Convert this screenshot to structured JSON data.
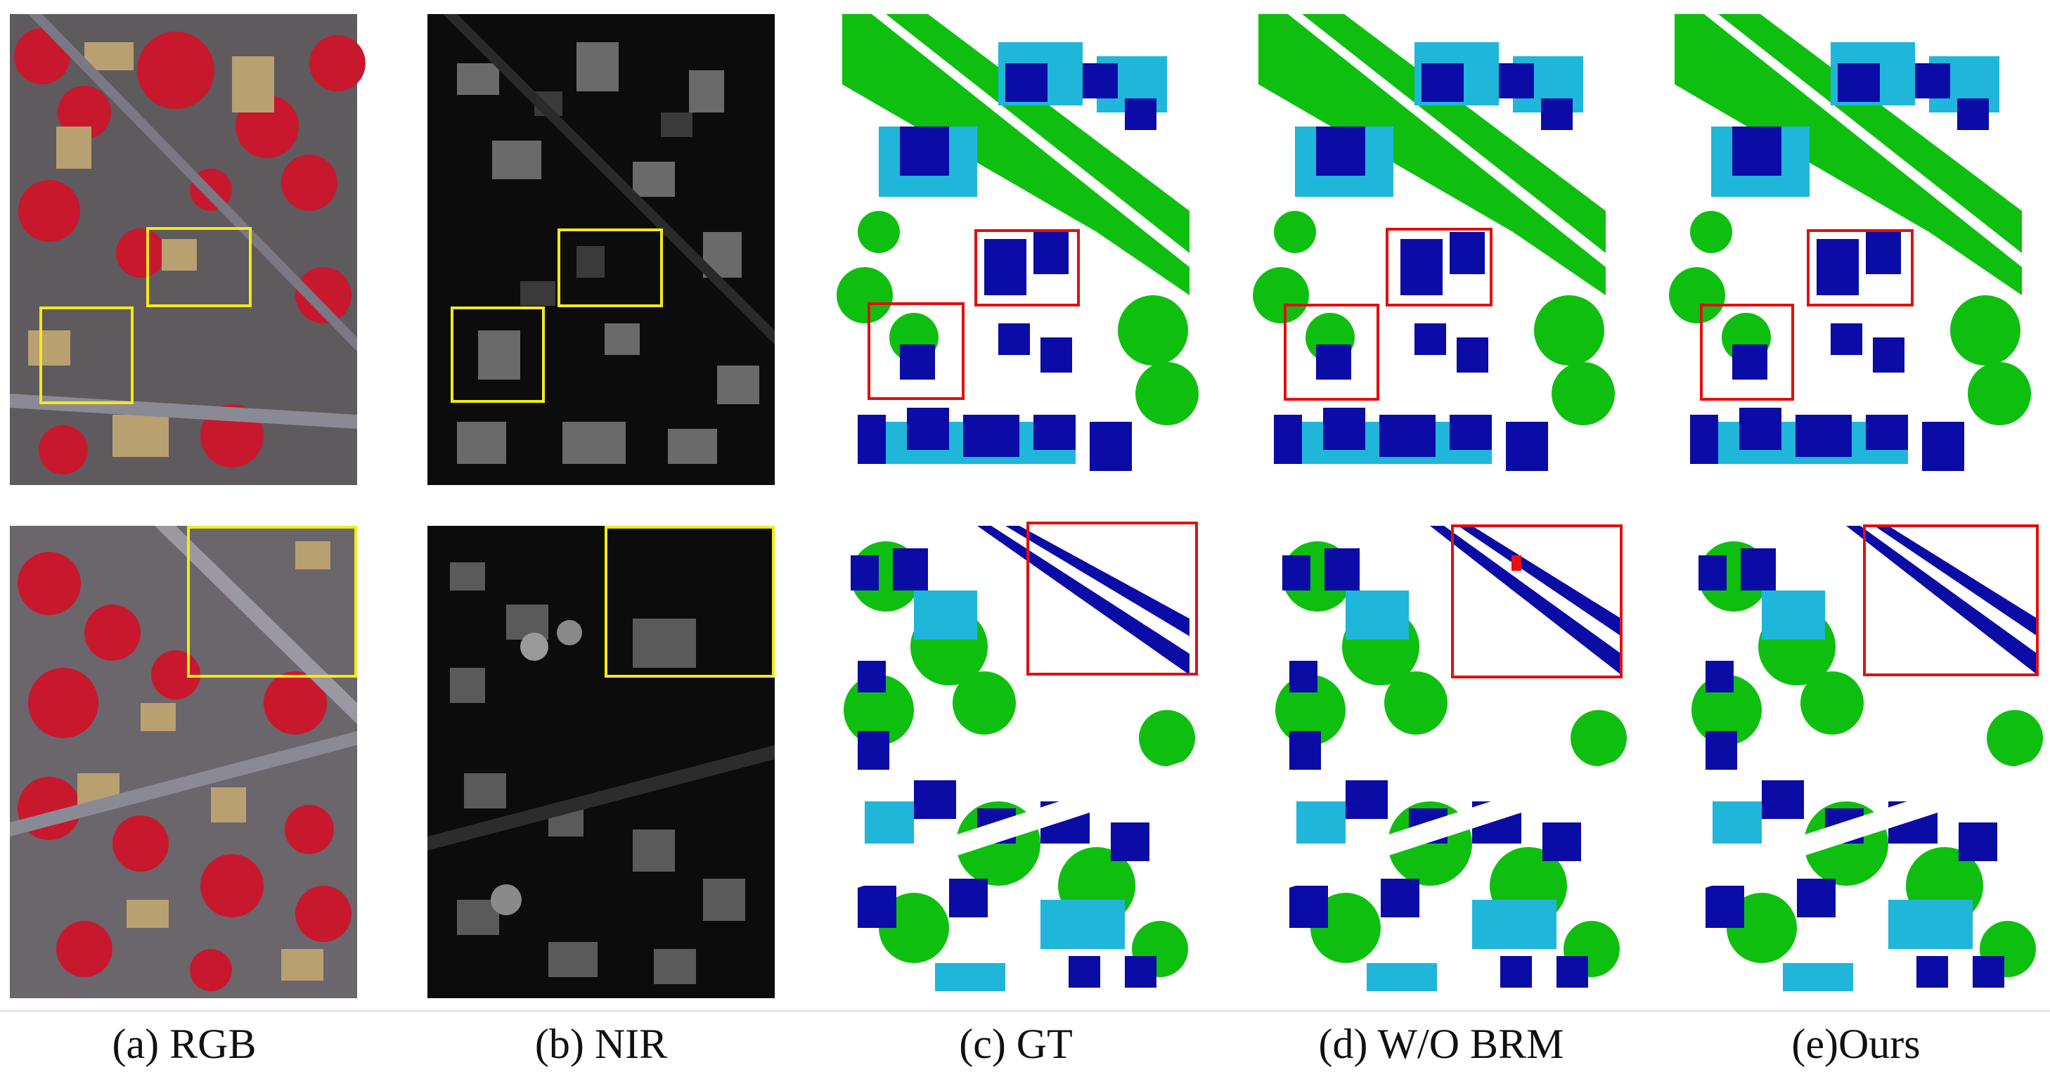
{
  "figure": {
    "columns": [
      {
        "id": "rgb",
        "caption": "(a) RGB",
        "kind": "rgb-aerial-image"
      },
      {
        "id": "nir",
        "caption": "(b) NIR",
        "kind": "nir-grayscale-image"
      },
      {
        "id": "gt",
        "caption": "(c) GT",
        "kind": "segmentation-map"
      },
      {
        "id": "wo-brm",
        "caption": "(d) W/O BRM",
        "kind": "segmentation-map"
      },
      {
        "id": "ours",
        "caption": "(e)Ours",
        "kind": "segmentation-map"
      }
    ],
    "rows": 2,
    "colors": {
      "building": "#0b0ba6",
      "low-vegetation": "#1fb6da",
      "tree": "#0fbf10",
      "impervious-surface": "#ffffff",
      "car": "#f5e60a",
      "clutter": "#e81010",
      "rgb-highlight-box": "#f2ea18",
      "seg-highlight-box": "#e01010"
    }
  }
}
